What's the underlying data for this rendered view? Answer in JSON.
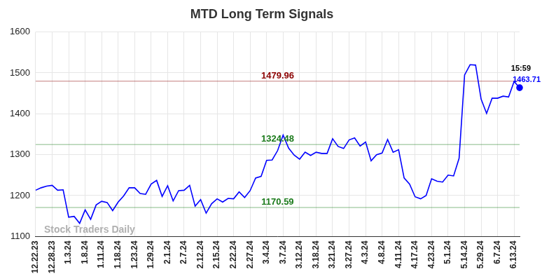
{
  "chart_data": {
    "type": "line",
    "title": "MTD Long Term Signals",
    "categories": [
      "12.22.23",
      null,
      null,
      "12.28.23",
      null,
      null,
      "1.3.24",
      null,
      null,
      "1.8.24",
      null,
      null,
      "1.11.24",
      null,
      null,
      "1.18.24",
      null,
      null,
      "1.23.24",
      null,
      null,
      "1.29.24",
      null,
      null,
      "2.1.24",
      null,
      null,
      "2.7.24",
      null,
      null,
      "2.12.24",
      null,
      null,
      "2.15.24",
      null,
      null,
      "2.22.24",
      null,
      null,
      "2.27.24",
      null,
      null,
      "3.4.24",
      null,
      null,
      "3.7.24",
      null,
      null,
      "3.12.24",
      null,
      null,
      "3.18.24",
      null,
      null,
      "3.21.24",
      null,
      null,
      "3.27.24",
      null,
      null,
      "4.3.24",
      null,
      null,
      "4.8.24",
      null,
      null,
      "4.11.24",
      null,
      null,
      "4.17.24",
      null,
      null,
      "4.23.24",
      null,
      null,
      "5.1.24",
      null,
      null,
      "5.14.24",
      null,
      null,
      "5.29.24",
      null,
      null,
      "6.7.24",
      null,
      null,
      "6.13.24",
      null
    ],
    "values": [
      1213,
      1219,
      1223,
      1225,
      1213,
      1214,
      1147,
      1149,
      1132,
      1165,
      1142,
      1177,
      1186,
      1183,
      1163,
      1184,
      1199,
      1219,
      1219,
      1205,
      1203,
      1228,
      1237,
      1198,
      1224,
      1187,
      1212,
      1213,
      1225,
      1174,
      1190,
      1157,
      1180,
      1192,
      1184,
      1193,
      1192,
      1209,
      1195,
      1212,
      1243,
      1247,
      1286,
      1287,
      1310,
      1348,
      1316,
      1299,
      1289,
      1306,
      1298,
      1306,
      1303,
      1303,
      1339,
      1320,
      1315,
      1336,
      1341,
      1321,
      1331,
      1285,
      1300,
      1304,
      1337,
      1306,
      1312,
      1243,
      1228,
      1197,
      1192,
      1200,
      1241,
      1235,
      1233,
      1250,
      1248,
      1291,
      1495,
      1520,
      1519,
      1436,
      1401,
      1438,
      1438,
      1443,
      1441,
      1479,
      1463.71
    ],
    "color": "#0000ff",
    "ylim": [
      1100,
      1600
    ],
    "yticks": [
      1100,
      1200,
      1300,
      1400,
      1500,
      1600
    ],
    "grid": true,
    "annotations": [
      {
        "value": 1479.96,
        "label": "1479.96",
        "color": "#8b0000"
      },
      {
        "value": 1324.48,
        "label": "1324.48",
        "color": "#1a7a1a"
      },
      {
        "value": 1170.59,
        "label": "1170.59",
        "color": "#1a7a1a"
      }
    ],
    "end_note": "15:59",
    "watermark": "Stock Traders Daily"
  }
}
